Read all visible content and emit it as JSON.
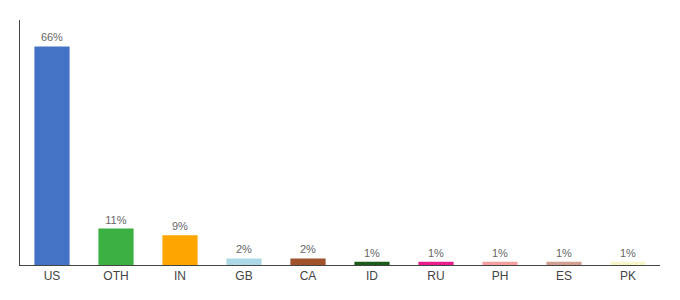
{
  "chart_data": {
    "type": "bar",
    "categories": [
      "US",
      "OTH",
      "IN",
      "GB",
      "CA",
      "ID",
      "RU",
      "PH",
      "ES",
      "PK"
    ],
    "values": [
      66,
      11,
      9,
      2,
      2,
      1,
      1,
      1,
      1,
      1
    ],
    "value_labels": [
      "66%",
      "11%",
      "9%",
      "2%",
      "2%",
      "1%",
      "1%",
      "1%",
      "1%",
      "1%"
    ],
    "data_labels": true,
    "colors": [
      "#4472c4",
      "#3cb043",
      "#ffa500",
      "#add8e6",
      "#a0522d",
      "#1a5c1a",
      "#e91e8c",
      "#f4a0a0",
      "#d2a090",
      "#f5f5c8"
    ],
    "ylim": [
      0,
      74
    ],
    "yticks": [],
    "grid": false,
    "tick_labels": "x"
  }
}
